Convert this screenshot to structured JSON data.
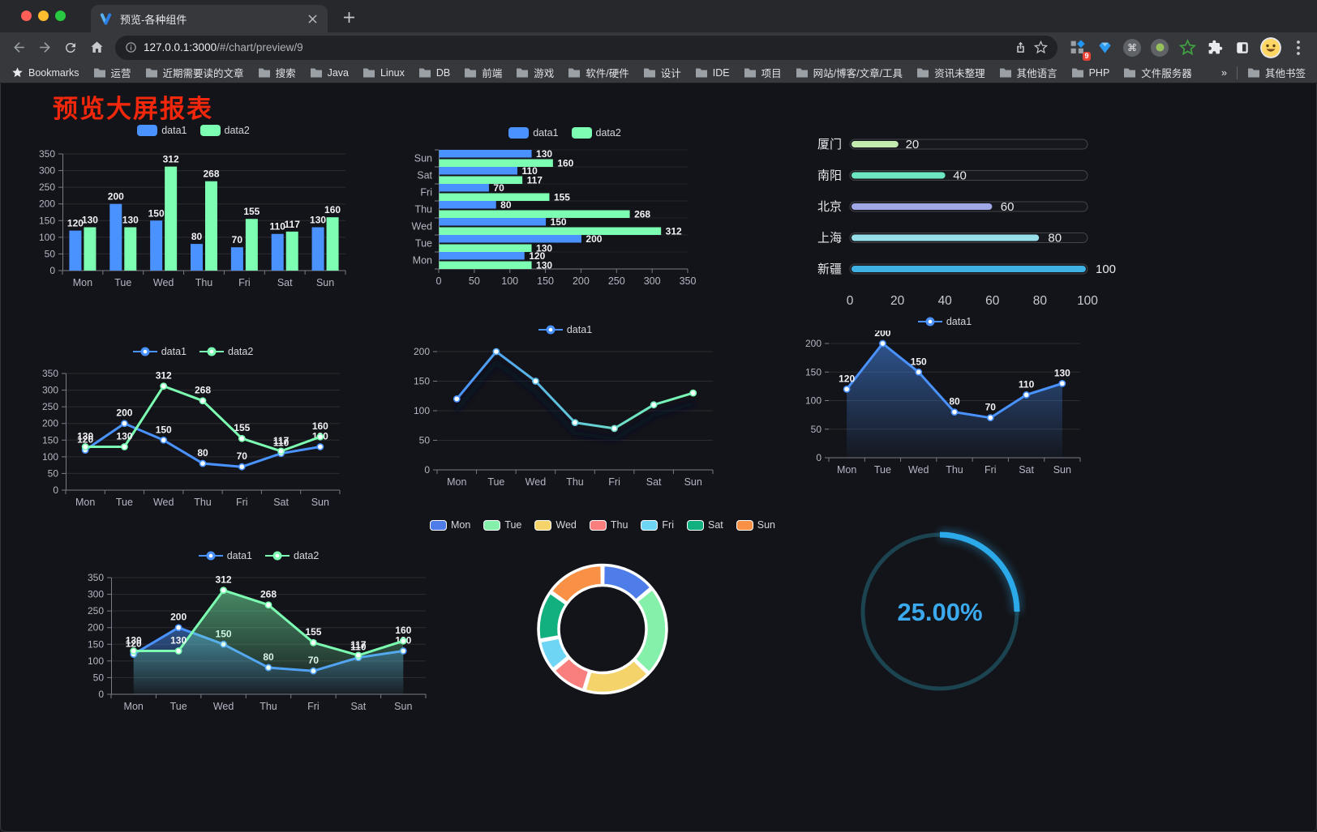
{
  "browser": {
    "tab_title": "预览-各种组件",
    "url_host": "127.0.0.1:3000",
    "url_path": "/#/chart/preview/9",
    "extension_badge": "9",
    "bookmarks_label": "Bookmarks",
    "bookmarks": [
      "运营",
      "近期需要读的文章",
      "搜索",
      "Java",
      "Linux",
      "DB",
      "前端",
      "游戏",
      "软件/硬件",
      "设计",
      "IDE",
      "项目",
      "网站/博客/文章/工具",
      "资讯未整理",
      "其他语言",
      "PHP",
      "文件服务器"
    ],
    "overflow_chevron": "»",
    "other_bookmarks": "其他书签",
    "icons": [
      "back-arrow",
      "forward-arrow",
      "reload",
      "home",
      "page-info",
      "share",
      "bookmark-star",
      "extensions-grid",
      "gem",
      "command",
      "proxy-dot",
      "green-star",
      "puzzle",
      "dark-mode",
      "profile-avatar",
      "menu-kebab"
    ]
  },
  "page": {
    "title": "预览大屏报表",
    "title_color": "#f2270c"
  },
  "chart_data": [
    {
      "type": "bar",
      "categories": [
        "Mon",
        "Tue",
        "Wed",
        "Thu",
        "Fri",
        "Sat",
        "Sun"
      ],
      "series": [
        {
          "name": "data1",
          "color": "#4992ff",
          "values": [
            120,
            200,
            150,
            80,
            70,
            110,
            130
          ]
        },
        {
          "name": "data2",
          "color": "#7cffb2",
          "values": [
            130,
            130,
            312,
            268,
            155,
            117,
            160
          ]
        }
      ],
      "ylim": [
        0,
        350
      ],
      "yticks": [
        0,
        50,
        100,
        150,
        200,
        250,
        300,
        350
      ],
      "legend": "pill",
      "value_labels": true
    },
    {
      "type": "hbar",
      "categories": [
        "Mon",
        "Tue",
        "Wed",
        "Thu",
        "Fri",
        "Sat",
        "Sun"
      ],
      "series": [
        {
          "name": "data1",
          "color": "#4992ff",
          "values": [
            120,
            200,
            150,
            80,
            70,
            110,
            130
          ]
        },
        {
          "name": "data2",
          "color": "#7cffb2",
          "values": [
            130,
            130,
            312,
            268,
            155,
            117,
            160
          ]
        }
      ],
      "xlim": [
        0,
        350
      ],
      "xticks": [
        0,
        50,
        100,
        150,
        200,
        250,
        300,
        350
      ],
      "legend": "pill",
      "value_labels": true
    },
    {
      "type": "progress",
      "items": [
        {
          "label": "厦门",
          "value": 20,
          "color": "#c4ebad"
        },
        {
          "label": "南阳",
          "value": 40,
          "color": "#6be6c1"
        },
        {
          "label": "北京",
          "value": 60,
          "color": "#a0a7e6"
        },
        {
          "label": "上海",
          "value": 80,
          "color": "#96dee8"
        },
        {
          "label": "新疆",
          "value": 100,
          "color": "#3fb1e3"
        }
      ],
      "xlim": [
        0,
        100
      ],
      "xticks": [
        0,
        20,
        40,
        60,
        80,
        100
      ]
    },
    {
      "type": "line",
      "categories": [
        "Mon",
        "Tue",
        "Wed",
        "Thu",
        "Fri",
        "Sat",
        "Sun"
      ],
      "series": [
        {
          "name": "data1",
          "color": "#4992ff",
          "values": [
            120,
            200,
            150,
            80,
            70,
            110,
            130
          ]
        },
        {
          "name": "data2",
          "color": "#7cffb2",
          "values": [
            130,
            130,
            312,
            268,
            155,
            117,
            160
          ]
        }
      ],
      "ylim": [
        0,
        350
      ],
      "yticks": [
        0,
        50,
        100,
        150,
        200,
        250,
        300,
        350
      ],
      "legend": "line",
      "value_labels": true,
      "y_axis_line": true
    },
    {
      "type": "line",
      "categories": [
        "Mon",
        "Tue",
        "Wed",
        "Thu",
        "Fri",
        "Sat",
        "Sun"
      ],
      "series": [
        {
          "name": "data1",
          "gradient": [
            "#4992ff",
            "#7cffb2"
          ],
          "values": [
            120,
            200,
            150,
            80,
            70,
            110,
            130
          ]
        }
      ],
      "ylim": [
        0,
        200
      ],
      "yticks": [
        0,
        50,
        100,
        150,
        200
      ],
      "legend": "line",
      "value_labels": false,
      "shadow": true,
      "y_axis_line": false
    },
    {
      "type": "line",
      "categories": [
        "Mon",
        "Tue",
        "Wed",
        "Thu",
        "Fri",
        "Sat",
        "Sun"
      ],
      "series": [
        {
          "name": "data1",
          "color": "#4992ff",
          "values": [
            120,
            200,
            150,
            80,
            70,
            110,
            130
          ],
          "area": true
        }
      ],
      "ylim": [
        0,
        200
      ],
      "yticks": [
        0,
        50,
        100,
        150,
        200
      ],
      "legend": "line",
      "value_labels": true,
      "y_axis_line": false
    },
    {
      "type": "line",
      "categories": [
        "Mon",
        "Tue",
        "Wed",
        "Thu",
        "Fri",
        "Sat",
        "Sun"
      ],
      "series": [
        {
          "name": "data1",
          "color": "#4992ff",
          "values": [
            120,
            200,
            150,
            80,
            70,
            110,
            130
          ],
          "area": true
        },
        {
          "name": "data2",
          "color": "#7cffb2",
          "values": [
            130,
            130,
            312,
            268,
            155,
            117,
            160
          ],
          "area": true
        }
      ],
      "ylim": [
        0,
        350
      ],
      "yticks": [
        0,
        50,
        100,
        150,
        200,
        250,
        300,
        350
      ],
      "legend": "line",
      "value_labels": true,
      "y_axis_line": true
    },
    {
      "type": "donut",
      "categories": [
        "Mon",
        "Tue",
        "Wed",
        "Thu",
        "Fri",
        "Sat",
        "Sun"
      ],
      "values": [
        120,
        200,
        150,
        80,
        70,
        110,
        130
      ],
      "colors": [
        "#4e7ce8",
        "#84f0a9",
        "#f3d36a",
        "#f97e7e",
        "#6fd5f5",
        "#12b07f",
        "#f89045"
      ],
      "legend": "pill-border"
    },
    {
      "type": "gauge",
      "label": "25.00%",
      "percent": 25,
      "color": "#2ba9e8",
      "track_color": "#1c4350",
      "text_color": "#3aa9ee"
    }
  ]
}
